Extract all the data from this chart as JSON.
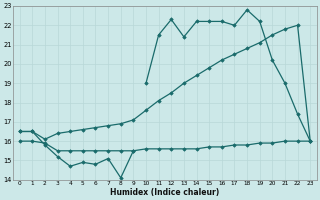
{
  "xlabel": "Humidex (Indice chaleur)",
  "bg_color": "#cce8e8",
  "line_color": "#1a6b6b",
  "grid_color": "#b8d8d8",
  "xlim": [
    -0.5,
    23.5
  ],
  "ylim": [
    14,
    23
  ],
  "xticks": [
    0,
    1,
    2,
    3,
    4,
    5,
    6,
    7,
    8,
    9,
    10,
    11,
    12,
    13,
    14,
    15,
    16,
    17,
    18,
    19,
    20,
    21,
    22,
    23
  ],
  "yticks": [
    14,
    15,
    16,
    17,
    18,
    19,
    20,
    21,
    22,
    23
  ],
  "series1_x": [
    0,
    1,
    2,
    3,
    4,
    5,
    6,
    7,
    8,
    9
  ],
  "series1_y": [
    16.5,
    16.5,
    15.8,
    15.2,
    14.7,
    14.9,
    14.8,
    15.1,
    14.1,
    15.5
  ],
  "series2_x": [
    0,
    1,
    2,
    3,
    4,
    5,
    6,
    7,
    8,
    9,
    10,
    11,
    12,
    13,
    14,
    15,
    16,
    17,
    18,
    19,
    20,
    21,
    22,
    23
  ],
  "series2_y": [
    16.0,
    16.0,
    15.9,
    15.5,
    15.5,
    15.5,
    15.5,
    15.5,
    15.5,
    15.5,
    15.6,
    15.6,
    15.6,
    15.6,
    15.6,
    15.7,
    15.7,
    15.8,
    15.8,
    15.9,
    15.9,
    16.0,
    16.0,
    16.0
  ],
  "series3_x": [
    0,
    1,
    2,
    3,
    4,
    5,
    6,
    7,
    8,
    9,
    10,
    11,
    12,
    13,
    14,
    15,
    16,
    17,
    18,
    19,
    20,
    21,
    22,
    23
  ],
  "series3_y": [
    16.5,
    16.5,
    16.1,
    16.4,
    16.5,
    16.6,
    16.7,
    16.8,
    16.9,
    17.1,
    17.6,
    18.1,
    18.5,
    19.0,
    19.4,
    19.8,
    20.2,
    20.5,
    20.8,
    21.1,
    21.5,
    21.8,
    22.0,
    16.0
  ],
  "series4_x": [
    10,
    11,
    12,
    13,
    14,
    15,
    16,
    17,
    18,
    19,
    20,
    21,
    22,
    23
  ],
  "series4_y": [
    19.0,
    21.5,
    22.3,
    21.4,
    22.2,
    22.2,
    22.2,
    22.0,
    22.8,
    22.2,
    20.2,
    19.0,
    17.4,
    16.0
  ]
}
